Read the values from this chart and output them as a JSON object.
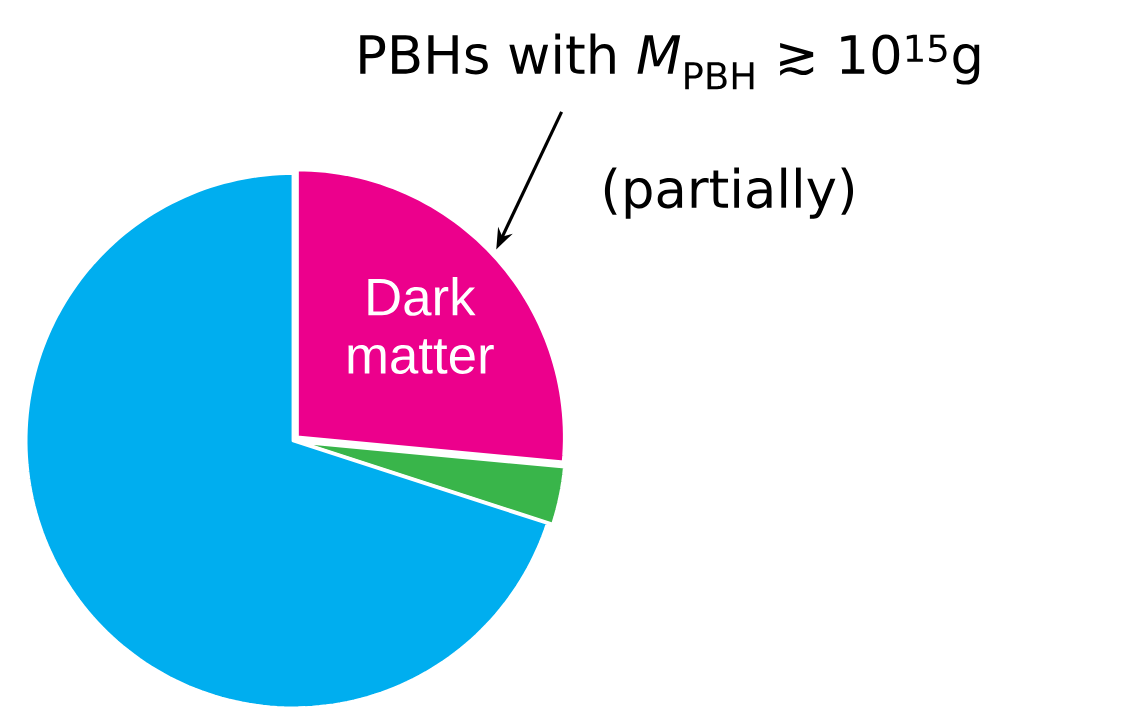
{
  "chart_data": {
    "type": "pie",
    "categories": [
      "Dark matter",
      null,
      null
    ],
    "values": [
      26.5,
      3.5,
      70
    ],
    "colors": [
      "#ec008c",
      "#39b54a",
      "#00aeef"
    ],
    "annotations": [
      "PBHs with *M*$_{PBH}$ ≳ 10$^{15}$g",
      "(partially)"
    ]
  }
}
